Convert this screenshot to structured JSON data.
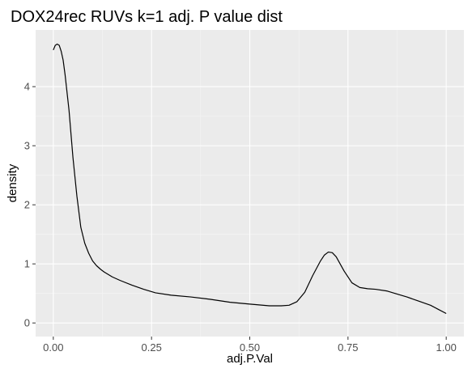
{
  "chart_data": {
    "type": "line",
    "title": "DOX24rec RUVs k=1 adj. P value dist",
    "xlabel": "adj.P.Val",
    "ylabel": "density",
    "xlim": [
      -0.045,
      1.045
    ],
    "ylim": [
      -0.23,
      4.96
    ],
    "x_ticks": [
      0.0,
      0.25,
      0.5,
      0.75,
      1.0
    ],
    "x_tick_labels": [
      "0.00",
      "0.25",
      "0.50",
      "0.75",
      "1.00"
    ],
    "y_ticks": [
      0,
      1,
      2,
      3,
      4
    ],
    "y_tick_labels": [
      "0",
      "1",
      "2",
      "3",
      "4"
    ],
    "grid": true,
    "legend": "none",
    "colors": {
      "panel": "#ebebeb",
      "grid_major": "#ffffff",
      "grid_minor": "#f5f5f5",
      "line": "#000000",
      "tick": "#333333"
    },
    "series": [
      {
        "x": [
          0.0,
          0.005,
          0.01,
          0.015,
          0.02,
          0.025,
          0.03,
          0.04,
          0.05,
          0.06,
          0.07,
          0.08,
          0.09,
          0.1,
          0.11,
          0.12,
          0.13,
          0.15,
          0.17,
          0.2,
          0.23,
          0.26,
          0.3,
          0.35,
          0.4,
          0.45,
          0.5,
          0.55,
          0.58,
          0.6,
          0.62,
          0.64,
          0.66,
          0.68,
          0.69,
          0.7,
          0.71,
          0.72,
          0.74,
          0.76,
          0.78,
          0.8,
          0.82,
          0.85,
          0.88,
          0.9,
          0.93,
          0.96,
          0.98,
          1.0
        ],
        "y": [
          4.62,
          4.7,
          4.72,
          4.7,
          4.6,
          4.45,
          4.2,
          3.6,
          2.8,
          2.15,
          1.62,
          1.35,
          1.18,
          1.05,
          0.97,
          0.91,
          0.86,
          0.78,
          0.72,
          0.64,
          0.57,
          0.51,
          0.47,
          0.44,
          0.4,
          0.35,
          0.32,
          0.29,
          0.29,
          0.3,
          0.36,
          0.52,
          0.8,
          1.05,
          1.15,
          1.2,
          1.19,
          1.12,
          0.88,
          0.68,
          0.6,
          0.58,
          0.57,
          0.54,
          0.48,
          0.44,
          0.37,
          0.3,
          0.23,
          0.16
        ]
      }
    ]
  }
}
